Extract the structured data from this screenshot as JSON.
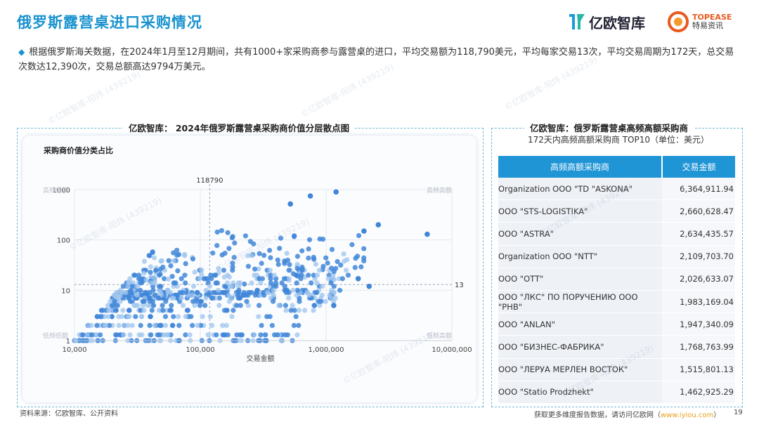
{
  "header": {
    "title": "俄罗斯露营桌进口采购情况",
    "logo_left_text": "亿欧智库",
    "logo_right_line1": "TOPEASE",
    "logo_right_line2": "特易资讯"
  },
  "summary": "根据俄罗斯海关数据，在2024年1月至12月期间，共有1000+家采购商参与露营桌的进口，平均交易额为118,790美元，平均每家交易13次，平均交易周期为172天，总交易次数达12,390次，交易总额高达9794万美元。",
  "left_panel": {
    "title": "亿欧智库： 2024年俄罗斯露营桌采购商价值分层散点图",
    "subtitle": "采购商价值分类占比"
  },
  "chart_data": {
    "type": "scatter",
    "title": "2024年俄罗斯露营桌采购商价值分层散点图",
    "xlabel": "交易金额",
    "ylabel": "",
    "x_scale": "log",
    "y_scale": "log",
    "xlim": [
      10000,
      10000000
    ],
    "ylim": [
      1,
      1000
    ],
    "x_ticks": [
      "10,000",
      "100,000",
      "1,000,000",
      "10,000,000"
    ],
    "y_ticks": [
      "1",
      "10",
      "100",
      "1000"
    ],
    "reference_lines": {
      "x": 118790,
      "x_label": "118790",
      "y": 13,
      "y_label": "13"
    },
    "quadrant_labels": {
      "top_left": "高频低额",
      "top_right": "高频高额",
      "bottom_left": "低频低额",
      "bottom_right": "低频高额"
    },
    "grid": true,
    "notable_points": [
      {
        "x": 1200000,
        "y": 900
      },
      {
        "x": 750000,
        "y": 750
      },
      {
        "x": 520000,
        "y": 520
      },
      {
        "x": 2600000,
        "y": 200
      },
      {
        "x": 6364912,
        "y": 130
      },
      {
        "x": 2000000,
        "y": 150
      },
      {
        "x": 1800000,
        "y": 17
      },
      {
        "x": 2200000,
        "y": 12
      },
      {
        "x": 1150000,
        "y": 5
      }
    ],
    "colors": {
      "point": "#3f86d8",
      "point_light": "#9ec4ee",
      "refline": "#9aa6b8"
    }
  },
  "right_panel": {
    "title": "亿欧智库：俄罗斯露营桌高频高额采购商",
    "subtitle": "172天内高频高额采购商 TOP10（单位：美元）",
    "columns": [
      "高频高额采购商",
      "交易金额"
    ],
    "rows": [
      {
        "name": "Organization OOO \"TD \"ASKONA\"",
        "amount": "6,364,911.94"
      },
      {
        "name": "OOO \"STS-LOGISTIKA\"",
        "amount": "2,660,628.47"
      },
      {
        "name": "OOO \"ASTRA\"",
        "amount": "2,634,435.57"
      },
      {
        "name": "Organization OOO \"NTT\"",
        "amount": "2,109,703.70"
      },
      {
        "name": "OOO \"OTT\"",
        "amount": "2,026,633.07"
      },
      {
        "name": "ООО \"ЛКС\" ПО ПОРУЧЕНИЮ ООО \"РНВ\"",
        "amount": "1,983,169.04"
      },
      {
        "name": "OOO \"ANLAN\"",
        "amount": "1,947,340.09"
      },
      {
        "name": "ООО \"БИЗНЕС-ФАБРИКА\"",
        "amount": "1,768,763.99"
      },
      {
        "name": "ООО \"ЛЕРУА МЕРЛЕН ВОСТОК\"",
        "amount": "1,515,801.13"
      },
      {
        "name": "OOO \"Statio Prodzhekt\"",
        "amount": "1,462,925.29"
      }
    ]
  },
  "footer": {
    "source": "资料来源：亿欧智库、公开资料",
    "cta": "获取更多维度报告数据，请访问亿欧网（",
    "url": "www.iyiou.com",
    "cta_end": "）",
    "page": "19"
  },
  "watermark": "©亿欧智库-阳炜 (439219)"
}
